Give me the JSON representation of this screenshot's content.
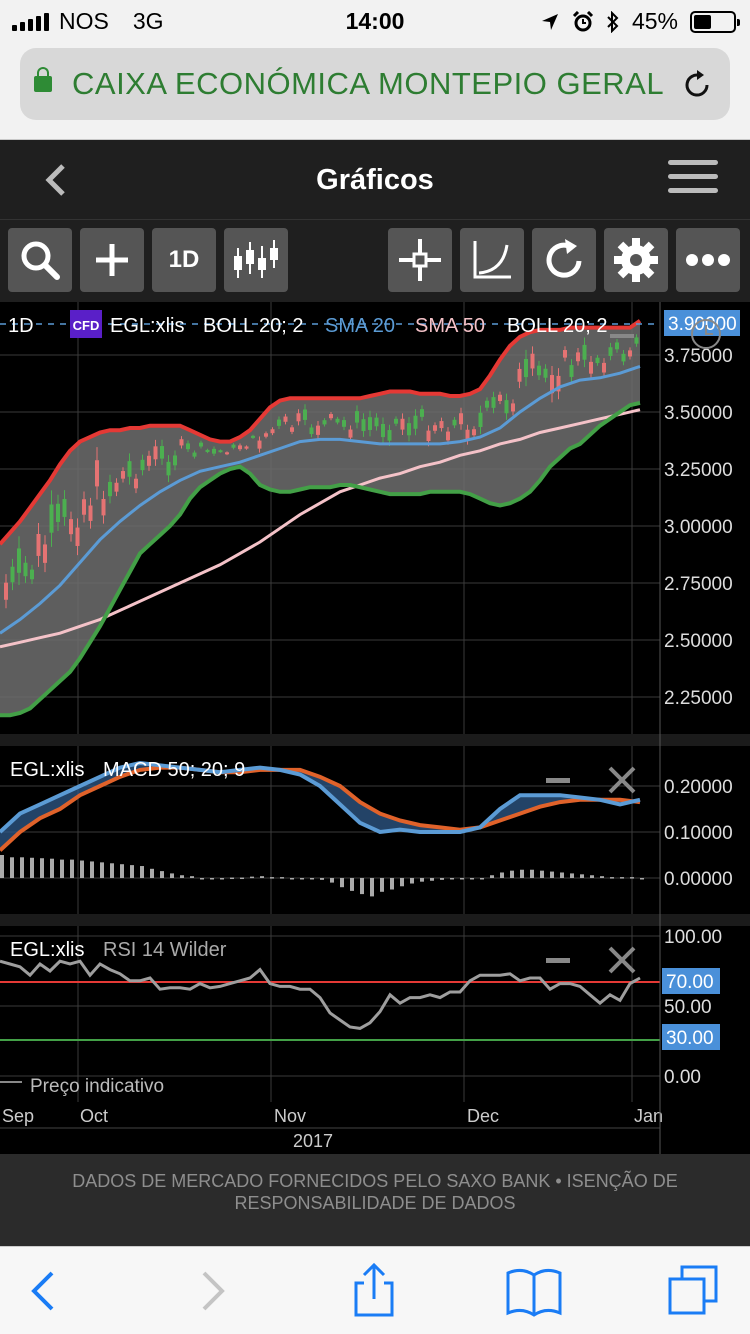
{
  "status_bar": {
    "carrier": "NOS",
    "network": "3G",
    "time": "14:00",
    "battery": "45%",
    "battery_level": 0.45
  },
  "browser": {
    "url_text": "CAIXA ECONÓMICA MONTEPIO GERAL"
  },
  "app": {
    "title": "Gráficos"
  },
  "toolbar": {
    "period_label": "1D",
    "icons": [
      "search-icon",
      "plus-icon",
      "candlestick-icon",
      "crosshair-icon",
      "curve-icon",
      "refresh-icon",
      "gear-icon",
      "more-icon"
    ]
  },
  "chart_data": [
    {
      "type": "candlestick",
      "legend": {
        "period": "1D",
        "badge": "CFD",
        "instrument": "EGL:xlis",
        "boll_upper": "BOLL 20; 2",
        "sma20": "SMA 20",
        "sma50": "SMA 50",
        "boll_lower": "BOLL 20; 2"
      },
      "y_ticks": [
        "3.75000",
        "3.50000",
        "3.25000",
        "3.00000",
        "2.75000",
        "2.50000",
        "2.25000"
      ],
      "last_price_label": "3.90000",
      "colors": {
        "boll_upper": "#e53935",
        "boll_lower": "#43a047",
        "sma20": "#5b9bd5",
        "sma50": "#f4c2c8",
        "band_fill": "#6f6f6f",
        "up": "#4caf50",
        "down": "#e57373",
        "price_tag": "#4a90d9"
      },
      "series": [
        {
          "name": "BOLL 20; 2",
          "x": [
            0,
            10,
            20,
            30,
            40,
            50,
            60,
            70,
            80,
            90,
            100,
            110,
            120,
            130,
            140,
            150,
            160,
            170,
            180,
            190,
            200,
            210,
            220,
            230,
            240,
            250,
            260,
            270,
            280,
            290,
            300,
            310,
            320,
            330,
            340,
            350,
            360,
            370,
            380,
            390,
            400,
            410,
            420,
            430,
            440,
            450,
            460,
            470,
            480,
            490,
            500,
            510,
            520,
            530,
            540,
            550,
            560,
            570,
            580,
            590,
            600,
            610,
            620,
            630,
            640
          ],
          "values": [
            2.92,
            2.97,
            3.02,
            3.08,
            3.14,
            3.2,
            3.27,
            3.33,
            3.37,
            3.39,
            3.41,
            3.42,
            3.42,
            3.43,
            3.43,
            3.44,
            3.44,
            3.44,
            3.44,
            3.42,
            3.4,
            3.38,
            3.37,
            3.37,
            3.39,
            3.42,
            3.47,
            3.52,
            3.55,
            3.56,
            3.56,
            3.56,
            3.56,
            3.56,
            3.56,
            3.56,
            3.56,
            3.57,
            3.58,
            3.59,
            3.59,
            3.59,
            3.58,
            3.58,
            3.58,
            3.57,
            3.57,
            3.58,
            3.6,
            3.66,
            3.73,
            3.79,
            3.83,
            3.85,
            3.86,
            3.86,
            3.86,
            3.87,
            3.87,
            3.87,
            3.87,
            3.87,
            3.87,
            3.87,
            3.9
          ]
        },
        {
          "name": "SMA 20",
          "x": [
            0,
            20,
            40,
            60,
            80,
            100,
            120,
            140,
            160,
            180,
            200,
            220,
            240,
            260,
            280,
            300,
            320,
            340,
            360,
            380,
            400,
            420,
            440,
            460,
            480,
            500,
            520,
            540,
            560,
            580,
            600,
            620,
            640
          ],
          "values": [
            2.53,
            2.59,
            2.66,
            2.74,
            2.84,
            2.94,
            3.02,
            3.09,
            3.15,
            3.2,
            3.24,
            3.26,
            3.28,
            3.31,
            3.34,
            3.37,
            3.38,
            3.38,
            3.37,
            3.36,
            3.36,
            3.36,
            3.36,
            3.37,
            3.39,
            3.43,
            3.5,
            3.56,
            3.61,
            3.64,
            3.65,
            3.67,
            3.7
          ]
        },
        {
          "name": "SMA 50",
          "x": [
            0,
            20,
            40,
            60,
            80,
            100,
            120,
            140,
            160,
            180,
            200,
            220,
            240,
            260,
            280,
            300,
            320,
            340,
            360,
            380,
            400,
            420,
            440,
            460,
            480,
            500,
            520,
            540,
            560,
            580,
            600,
            620,
            640
          ],
          "values": [
            2.47,
            2.49,
            2.51,
            2.53,
            2.56,
            2.59,
            2.63,
            2.67,
            2.71,
            2.75,
            2.79,
            2.83,
            2.88,
            2.93,
            2.99,
            3.05,
            3.1,
            3.15,
            3.18,
            3.21,
            3.23,
            3.26,
            3.28,
            3.31,
            3.33,
            3.36,
            3.38,
            3.41,
            3.43,
            3.45,
            3.47,
            3.49,
            3.51
          ]
        },
        {
          "name": "BOLL 20; 2",
          "x": [
            0,
            10,
            20,
            30,
            40,
            50,
            60,
            70,
            80,
            90,
            100,
            110,
            120,
            130,
            140,
            150,
            160,
            170,
            180,
            190,
            200,
            210,
            220,
            230,
            240,
            250,
            260,
            270,
            280,
            290,
            300,
            310,
            320,
            330,
            340,
            350,
            360,
            370,
            380,
            390,
            400,
            410,
            420,
            430,
            440,
            450,
            460,
            470,
            480,
            490,
            500,
            510,
            520,
            530,
            540,
            550,
            560,
            570,
            580,
            590,
            600,
            610,
            620,
            630,
            640
          ],
          "values": [
            2.17,
            2.17,
            2.18,
            2.2,
            2.24,
            2.28,
            2.32,
            2.36,
            2.42,
            2.49,
            2.56,
            2.64,
            2.72,
            2.8,
            2.88,
            2.92,
            2.96,
            3.0,
            3.05,
            3.12,
            3.17,
            3.2,
            3.23,
            3.25,
            3.26,
            3.23,
            3.18,
            3.16,
            3.15,
            3.15,
            3.16,
            3.17,
            3.17,
            3.17,
            3.18,
            3.18,
            3.17,
            3.16,
            3.15,
            3.14,
            3.14,
            3.14,
            3.14,
            3.15,
            3.15,
            3.15,
            3.15,
            3.14,
            3.12,
            3.1,
            3.09,
            3.1,
            3.12,
            3.15,
            3.2,
            3.26,
            3.3,
            3.34,
            3.36,
            3.4,
            3.44,
            3.47,
            3.5,
            3.53,
            3.54
          ]
        }
      ]
    },
    {
      "type": "line",
      "legend": {
        "instrument": "EGL:xlis",
        "indicator": "MACD 50; 20; 9"
      },
      "y_ticks": [
        "0.20000",
        "0.10000",
        "0.00000"
      ],
      "colors": {
        "macd": "#5b9bd5",
        "signal": "#e0622a",
        "histogram": "#aaaaaa"
      },
      "series": [
        {
          "name": "MACD",
          "x": [
            0,
            20,
            40,
            60,
            80,
            100,
            120,
            140,
            160,
            180,
            200,
            220,
            240,
            260,
            280,
            300,
            320,
            340,
            360,
            380,
            400,
            420,
            440,
            460,
            480,
            500,
            520,
            540,
            560,
            580,
            600,
            620,
            640
          ],
          "values": [
            0.1,
            0.14,
            0.16,
            0.18,
            0.2,
            0.22,
            0.24,
            0.25,
            0.245,
            0.24,
            0.235,
            0.23,
            0.235,
            0.24,
            0.235,
            0.225,
            0.2,
            0.16,
            0.12,
            0.1,
            0.105,
            0.1,
            0.1,
            0.1,
            0.11,
            0.15,
            0.18,
            0.18,
            0.18,
            0.175,
            0.17,
            0.16,
            0.17
          ]
        },
        {
          "name": "Signal",
          "x": [
            0,
            20,
            40,
            60,
            80,
            100,
            120,
            140,
            160,
            180,
            200,
            220,
            240,
            260,
            280,
            300,
            320,
            340,
            360,
            380,
            400,
            420,
            440,
            460,
            480,
            500,
            520,
            540,
            560,
            580,
            600,
            620,
            640
          ],
          "values": [
            0.06,
            0.1,
            0.13,
            0.15,
            0.18,
            0.2,
            0.22,
            0.235,
            0.24,
            0.24,
            0.235,
            0.23,
            0.23,
            0.235,
            0.235,
            0.235,
            0.22,
            0.2,
            0.165,
            0.14,
            0.125,
            0.115,
            0.11,
            0.105,
            0.11,
            0.125,
            0.14,
            0.155,
            0.165,
            0.17,
            0.17,
            0.17,
            0.165
          ]
        },
        {
          "name": "Histogram",
          "x": [
            0,
            10,
            20,
            30,
            40,
            50,
            60,
            70,
            80,
            90,
            100,
            110,
            120,
            130,
            140,
            150,
            160,
            170,
            180,
            190,
            200,
            210,
            220,
            230,
            240,
            250,
            260,
            270,
            280,
            290,
            300,
            310,
            320,
            330,
            340,
            350,
            360,
            370,
            380,
            390,
            400,
            410,
            420,
            430,
            440,
            450,
            460,
            470,
            480,
            490,
            500,
            510,
            520,
            530,
            540,
            550,
            560,
            570,
            580,
            590,
            600,
            610,
            620,
            630,
            640
          ],
          "values": [
            0.05,
            0.045,
            0.045,
            0.044,
            0.043,
            0.042,
            0.04,
            0.04,
            0.038,
            0.036,
            0.034,
            0.032,
            0.03,
            0.028,
            0.026,
            0.02,
            0.015,
            0.01,
            0.006,
            0.004,
            0,
            0,
            0,
            0.001,
            0.001,
            0.003,
            0.004,
            0.002,
            0.002,
            0,
            0,
            0,
            -0.004,
            -0.01,
            -0.02,
            -0.028,
            -0.035,
            -0.04,
            -0.03,
            -0.025,
            -0.018,
            -0.012,
            -0.008,
            -0.006,
            -0.004,
            0,
            0,
            0,
            0,
            0.006,
            0.012,
            0.016,
            0.018,
            0.018,
            0.016,
            0.014,
            0.012,
            0.01,
            0.008,
            0.006,
            0.004,
            0.002,
            0.002,
            0.002,
            0
          ]
        }
      ]
    },
    {
      "type": "line",
      "legend": {
        "instrument": "EGL:xlis",
        "indicator": "RSI 14 Wilder"
      },
      "y_ticks": [
        "100.00",
        "50.00",
        "0.00"
      ],
      "levels": [
        "70.00",
        "30.00"
      ],
      "colors": {
        "rsi": "#9e9e9e",
        "overbought": "#e53935",
        "oversold": "#43a047",
        "tag": "#4a90d9"
      },
      "series": [
        {
          "name": "RSI 14 Wilder",
          "x": [
            0,
            10,
            20,
            30,
            40,
            50,
            60,
            70,
            80,
            90,
            100,
            110,
            120,
            130,
            140,
            150,
            160,
            170,
            180,
            190,
            200,
            210,
            220,
            230,
            240,
            250,
            260,
            270,
            280,
            290,
            300,
            310,
            320,
            330,
            340,
            350,
            360,
            370,
            380,
            390,
            400,
            410,
            420,
            430,
            440,
            450,
            460,
            470,
            480,
            490,
            500,
            510,
            520,
            530,
            540,
            550,
            560,
            570,
            580,
            590,
            600,
            610,
            620,
            630,
            640
          ],
          "values": [
            82,
            80,
            78,
            72,
            80,
            75,
            82,
            80,
            82,
            72,
            80,
            76,
            73,
            68,
            68,
            70,
            62,
            63,
            63,
            62,
            66,
            63,
            64,
            66,
            68,
            70,
            76,
            66,
            64,
            64,
            62,
            62,
            56,
            45,
            40,
            35,
            34,
            38,
            46,
            58,
            52,
            56,
            56,
            58,
            56,
            60,
            60,
            68,
            72,
            72,
            72,
            73,
            68,
            70,
            70,
            62,
            66,
            66,
            64,
            58,
            52,
            58,
            54,
            66,
            70
          ]
        }
      ],
      "footer_note": "Preço indicativo"
    }
  ],
  "x_axis": {
    "months": [
      "Sep",
      "Oct",
      "Nov",
      "Dec",
      "Jan"
    ],
    "year": "2017"
  },
  "disclaimer": "DADOS DE MERCADO FORNECIDOS PELO SAXO BANK • ISENÇÃO DE RESPONSABILIDADE DE DADOS"
}
